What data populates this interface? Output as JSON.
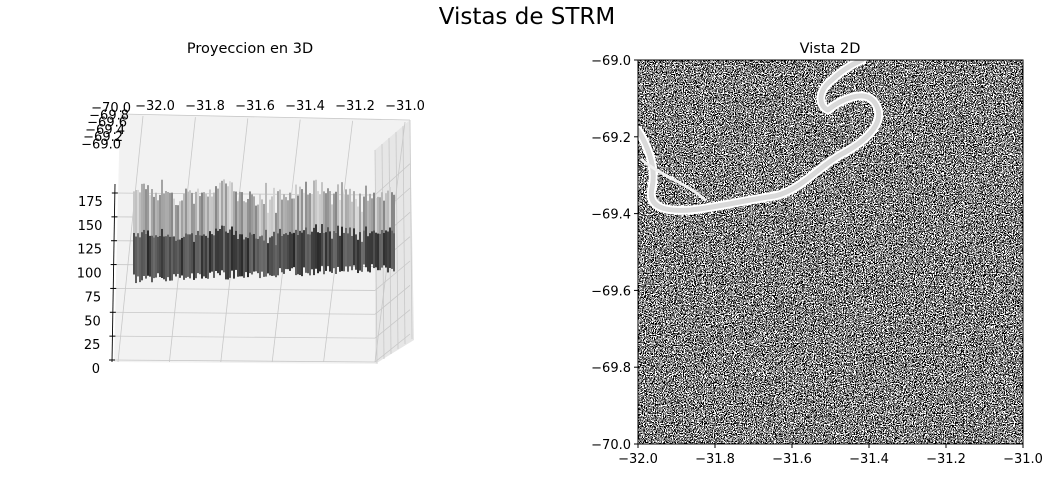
{
  "figure": {
    "suptitle": "Vistas de STRM"
  },
  "chart_data": [
    {
      "type": "surface-3d",
      "title": "Proyeccion en 3D",
      "xlabel": "",
      "ylabel": "",
      "zlabel": "",
      "colormap": "gray",
      "x_ticks": [
        "−32.0",
        "−31.8",
        "−31.6",
        "−31.4",
        "−31.2",
        "−31.0"
      ],
      "y_ticks": [
        "−70.0",
        "−69.8",
        "−69.6",
        "−69.4",
        "−69.2",
        "−69.0"
      ],
      "z_ticks": [
        "0",
        "25",
        "50",
        "75",
        "100",
        "125",
        "150",
        "175"
      ],
      "xlim": [
        -32.0,
        -31.0
      ],
      "ylim": [
        -70.0,
        -69.0
      ],
      "zlim": [
        0,
        190
      ],
      "surface_z_range": [
        80,
        190
      ],
      "grid": true
    },
    {
      "type": "heatmap",
      "title": "Vista 2D",
      "xlabel": "",
      "ylabel": "",
      "colormap": "gray (hillshade-like texture)",
      "x_ticks": [
        "−32.0",
        "−31.8",
        "−31.6",
        "−31.4",
        "−31.2",
        "−31.0"
      ],
      "y_ticks": [
        "−69.0",
        "−69.2",
        "−69.4",
        "−69.6",
        "−69.8",
        "−70.0"
      ],
      "xlim": [
        -32.0,
        -31.0
      ],
      "ylim": [
        -70.0,
        -69.0
      ],
      "features": [
        "river channel crossing upper-left region"
      ]
    }
  ]
}
